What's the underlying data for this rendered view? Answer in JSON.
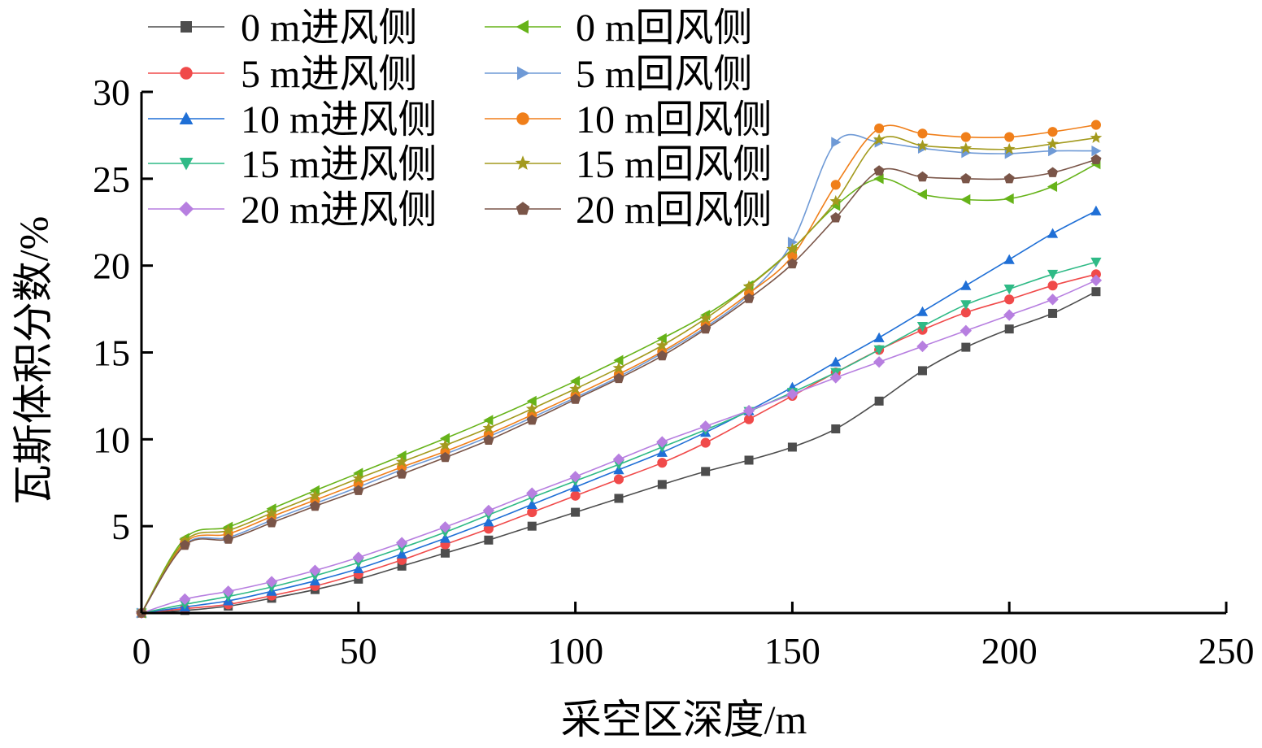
{
  "chart_data": {
    "type": "line",
    "title": "",
    "xlabel": "采空区深度/m",
    "ylabel": "瓦斯体积分数/%",
    "xlim": [
      0,
      250
    ],
    "ylim": [
      0,
      30
    ],
    "xticks": [
      0,
      50,
      100,
      150,
      200,
      250
    ],
    "yticks": [
      5,
      10,
      15,
      20,
      25,
      30
    ],
    "xtick_labels": [
      "0",
      "50",
      "100",
      "150",
      "200",
      "250"
    ],
    "ytick_labels": [
      "5",
      "10",
      "15",
      "20",
      "25",
      "30"
    ],
    "grid": false,
    "legend_position": "top-left",
    "series": [
      {
        "name": "0 m进风侧",
        "color": "#4d4d4d",
        "marker": "square",
        "x": [
          0,
          10,
          20,
          30,
          40,
          50,
          60,
          70,
          80,
          90,
          100,
          110,
          120,
          130,
          140,
          150,
          160,
          170,
          180,
          190,
          200,
          210,
          220
        ],
        "y": [
          0,
          0.15,
          0.4,
          0.85,
          1.35,
          1.95,
          2.7,
          3.45,
          4.2,
          5.0,
          5.8,
          6.6,
          7.4,
          8.15,
          8.8,
          9.55,
          10.6,
          12.2,
          13.95,
          15.3,
          16.35,
          17.25,
          18.5
        ]
      },
      {
        "name": "5 m进风侧",
        "color": "#f04a4a",
        "marker": "circle",
        "x": [
          0,
          10,
          20,
          30,
          40,
          50,
          60,
          70,
          80,
          90,
          100,
          110,
          120,
          130,
          140,
          150,
          160,
          170,
          180,
          190,
          200,
          210,
          220
        ],
        "y": [
          0,
          0.25,
          0.5,
          1.0,
          1.55,
          2.25,
          3.05,
          3.95,
          4.85,
          5.8,
          6.75,
          7.7,
          8.65,
          9.8,
          11.15,
          12.5,
          13.85,
          15.15,
          16.3,
          17.3,
          18.05,
          18.85,
          19.5
        ]
      },
      {
        "name": "10 m进风侧",
        "color": "#1f6fd6",
        "marker": "triangle-up",
        "x": [
          0,
          10,
          20,
          30,
          40,
          50,
          60,
          70,
          80,
          90,
          100,
          110,
          120,
          130,
          140,
          150,
          160,
          170,
          180,
          190,
          200,
          210,
          220
        ],
        "y": [
          0,
          0.35,
          0.7,
          1.25,
          1.85,
          2.55,
          3.4,
          4.3,
          5.25,
          6.25,
          7.25,
          8.25,
          9.25,
          10.4,
          11.65,
          13.0,
          14.45,
          15.85,
          17.35,
          18.85,
          20.35,
          21.85,
          23.15
        ]
      },
      {
        "name": "15 m进风侧",
        "color": "#2fba86",
        "marker": "triangle-down",
        "x": [
          0,
          10,
          20,
          30,
          40,
          50,
          60,
          70,
          80,
          90,
          100,
          110,
          120,
          130,
          140,
          150,
          160,
          170,
          180,
          190,
          200,
          210,
          220
        ],
        "y": [
          0,
          0.5,
          0.95,
          1.5,
          2.15,
          2.9,
          3.75,
          4.65,
          5.65,
          6.65,
          7.6,
          8.55,
          9.55,
          10.55,
          11.6,
          12.7,
          13.85,
          15.15,
          16.5,
          17.75,
          18.65,
          19.5,
          20.2
        ]
      },
      {
        "name": "20 m进风侧",
        "color": "#b77fe0",
        "marker": "diamond",
        "x": [
          0,
          10,
          20,
          30,
          40,
          50,
          60,
          70,
          80,
          90,
          100,
          110,
          120,
          130,
          140,
          150,
          160,
          170,
          180,
          190,
          200,
          210,
          220
        ],
        "y": [
          0,
          0.8,
          1.25,
          1.8,
          2.45,
          3.2,
          4.05,
          4.95,
          5.9,
          6.9,
          7.85,
          8.85,
          9.85,
          10.75,
          11.65,
          12.6,
          13.55,
          14.45,
          15.35,
          16.25,
          17.15,
          18.05,
          19.15
        ]
      },
      {
        "name": "0 m回风侧",
        "color": "#66b319",
        "marker": "triangle-left",
        "x": [
          0,
          10,
          20,
          30,
          40,
          50,
          60,
          70,
          80,
          90,
          100,
          110,
          120,
          130,
          140,
          150,
          160,
          170,
          180,
          190,
          200,
          210,
          220
        ],
        "y": [
          0,
          4.3,
          4.95,
          6.0,
          7.05,
          8.05,
          9.05,
          10.05,
          11.1,
          12.2,
          13.35,
          14.55,
          15.8,
          17.15,
          18.85,
          20.95,
          23.45,
          25.0,
          24.1,
          23.8,
          23.85,
          24.55,
          25.85
        ]
      },
      {
        "name": "5 m回风侧",
        "color": "#6f9ad6",
        "marker": "triangle-right",
        "x": [
          0,
          10,
          20,
          30,
          40,
          50,
          60,
          70,
          80,
          90,
          100,
          110,
          120,
          130,
          140,
          150,
          160,
          170,
          180,
          190,
          200,
          210,
          220
        ],
        "y": [
          0,
          3.95,
          4.35,
          5.35,
          6.3,
          7.25,
          8.25,
          9.15,
          10.15,
          11.25,
          12.4,
          13.6,
          14.95,
          16.45,
          18.35,
          21.35,
          27.1,
          27.1,
          26.75,
          26.5,
          26.45,
          26.6,
          26.6
        ]
      },
      {
        "name": "10 m回风侧",
        "color": "#f07f1a",
        "marker": "circle",
        "x": [
          0,
          10,
          20,
          30,
          40,
          50,
          60,
          70,
          80,
          90,
          100,
          110,
          120,
          130,
          140,
          150,
          160,
          170,
          180,
          190,
          200,
          210,
          220
        ],
        "y": [
          0,
          4.05,
          4.55,
          5.55,
          6.5,
          7.45,
          8.4,
          9.3,
          10.3,
          11.4,
          12.55,
          13.75,
          15.05,
          16.6,
          18.4,
          20.55,
          24.65,
          27.9,
          27.6,
          27.4,
          27.4,
          27.7,
          28.1
        ]
      },
      {
        "name": "15 m回风侧",
        "color": "#a39a1e",
        "marker": "star",
        "x": [
          0,
          10,
          20,
          30,
          40,
          50,
          60,
          70,
          80,
          90,
          100,
          110,
          120,
          130,
          140,
          150,
          160,
          170,
          180,
          190,
          200,
          210,
          220
        ],
        "y": [
          0,
          4.15,
          4.75,
          5.75,
          6.75,
          7.75,
          8.7,
          9.65,
          10.65,
          11.75,
          12.9,
          14.1,
          15.4,
          16.95,
          18.8,
          20.95,
          23.7,
          27.25,
          26.9,
          26.75,
          26.7,
          27.0,
          27.35
        ]
      },
      {
        "name": "20 m回风侧",
        "color": "#7a5548",
        "marker": "pentagon",
        "x": [
          0,
          10,
          20,
          30,
          40,
          50,
          60,
          70,
          80,
          90,
          100,
          110,
          120,
          130,
          140,
          150,
          160,
          170,
          180,
          190,
          200,
          210,
          220
        ],
        "y": [
          0,
          3.9,
          4.25,
          5.2,
          6.15,
          7.05,
          8.0,
          8.95,
          9.95,
          11.1,
          12.3,
          13.5,
          14.8,
          16.35,
          18.1,
          20.1,
          22.75,
          25.45,
          25.1,
          25.0,
          25.0,
          25.35,
          26.1
        ]
      }
    ]
  }
}
